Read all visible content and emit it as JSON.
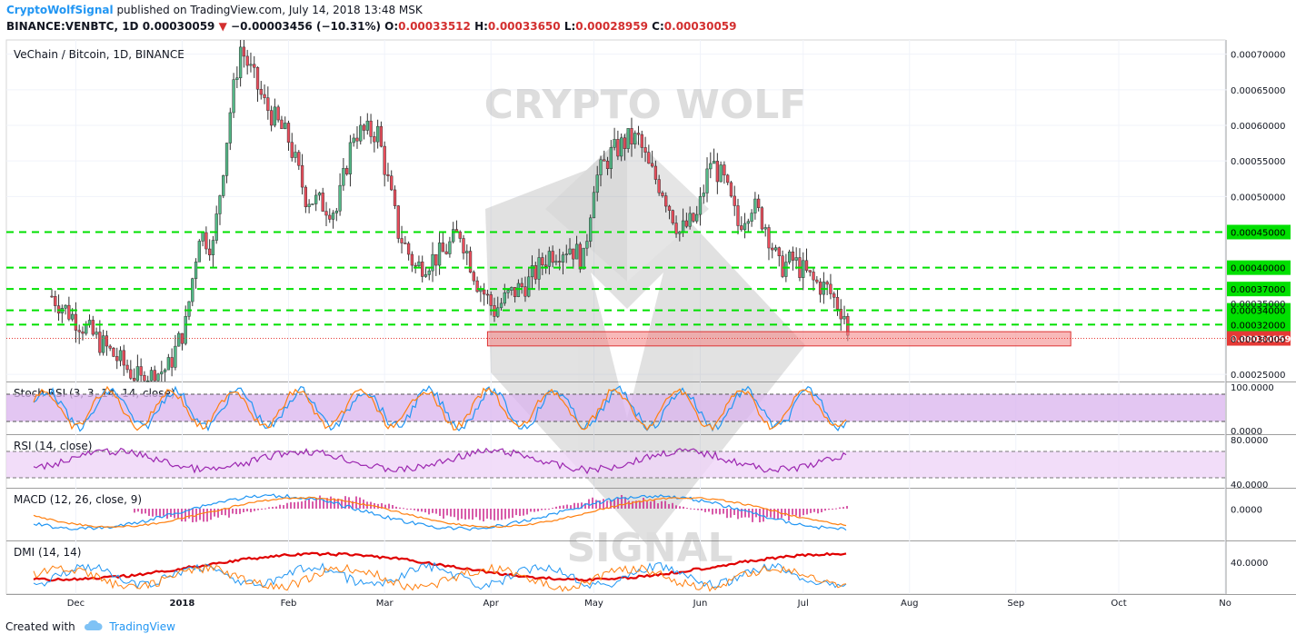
{
  "header": {
    "author": "CryptoWolfSignal",
    "published": "published on TradingView.com, July 14, 2018 13:48 MSK",
    "symbol": "BINANCE:VENBTC, 1D",
    "last": "0.00030059",
    "change": "−0.00003456 (−10.31%)",
    "open_label": "O:",
    "open": "0.00033512",
    "high_label": "H:",
    "high": "0.00033650",
    "low_label": "L:",
    "low": "0.00028959",
    "close_label": "C:",
    "close": "0.00030059"
  },
  "pane_title": "VeChain / Bitcoin, 1D, BINANCE",
  "watermark": {
    "top": "CRYPTO WOLF",
    "bottom": "SIGNAL"
  },
  "footer": {
    "created": "Created with",
    "brand": "TradingView"
  },
  "colors": {
    "up": "#53b987",
    "down": "#eb4d5c",
    "support": "#00e000",
    "zone": "#f48b8b",
    "stoch_band": "#d9b3ee",
    "rsi_band": "#efd5f8",
    "macd_line": "#2196f3",
    "macd_signal": "#ff7f0e",
    "macd_hist": "#c71585",
    "dmi_adx": "#e00000",
    "dmi_plus": "#2196f3",
    "dmi_minus": "#ff7f0e"
  },
  "chart_data": [
    {
      "type": "candlestick",
      "title": "VeChain / Bitcoin, 1D, BINANCE",
      "y_ticks": [
        "0.00070000",
        "0.00065000",
        "0.00060000",
        "0.00055000",
        "0.00050000",
        "0.00025000"
      ],
      "ylim": [
        0.00024,
        0.00072
      ],
      "x_ticks": [
        "Dec",
        "2018",
        "Feb",
        "Mar",
        "Apr",
        "May",
        "Jun",
        "Jul",
        "Aug",
        "Sep",
        "Oct",
        "No"
      ],
      "series_ohlc_approx": {
        "start": "2017-11-24",
        "close_path": [
          [
            "2017-11-24",
            0.00036
          ],
          [
            "2017-12-20",
            0.00024
          ],
          [
            "2017-12-28",
            0.00026
          ],
          [
            "2018-01-02",
            0.00032
          ],
          [
            "2018-01-06",
            0.00045
          ],
          [
            "2018-01-10",
            0.00043
          ],
          [
            "2018-01-15",
            0.00062
          ],
          [
            "2018-01-18",
            0.00071
          ],
          [
            "2018-01-25",
            0.00063
          ],
          [
            "2018-02-01",
            0.00058
          ],
          [
            "2018-02-06",
            0.0005
          ],
          [
            "2018-02-15",
            0.00048
          ],
          [
            "2018-02-20",
            0.00059
          ],
          [
            "2018-02-27",
            0.00059
          ],
          [
            "2018-03-05",
            0.00045
          ],
          [
            "2018-03-10",
            0.0004
          ],
          [
            "2018-03-18",
            0.00042
          ],
          [
            "2018-03-23",
            0.00045
          ],
          [
            "2018-03-28",
            0.00038
          ],
          [
            "2018-04-02",
            0.00034
          ],
          [
            "2018-04-06",
            0.00036
          ],
          [
            "2018-04-12",
            0.00038
          ],
          [
            "2018-04-18",
            0.00042
          ],
          [
            "2018-04-24",
            0.00043
          ],
          [
            "2018-04-28",
            0.00041
          ],
          [
            "2018-05-01",
            0.00052
          ],
          [
            "2018-05-06",
            0.00056
          ],
          [
            "2018-05-11",
            0.00058
          ],
          [
            "2018-05-14",
            0.00058
          ],
          [
            "2018-05-17",
            0.00054
          ],
          [
            "2018-05-21",
            0.00051
          ],
          [
            "2018-05-26",
            0.00045
          ],
          [
            "2018-05-31",
            0.00047
          ],
          [
            "2018-06-04",
            0.00055
          ],
          [
            "2018-06-08",
            0.00052
          ],
          [
            "2018-06-12",
            0.00046
          ],
          [
            "2018-06-16",
            0.00049
          ],
          [
            "2018-06-20",
            0.00046
          ],
          [
            "2018-06-24",
            0.0004
          ],
          [
            "2018-06-28",
            0.00041
          ],
          [
            "2018-07-04",
            0.00038
          ],
          [
            "2018-07-08",
            0.00037
          ],
          [
            "2018-07-13",
            0.000335
          ],
          [
            "2018-07-14",
            0.00030059
          ]
        ]
      },
      "horizontal_levels": [
        {
          "value": 0.00045,
          "label": "0.00045000"
        },
        {
          "value": 0.0004,
          "label": "0.00040000"
        },
        {
          "value": 0.00037,
          "label": "0.00037000"
        },
        {
          "value": 0.00034,
          "label": "0.00034000"
        },
        {
          "value": 0.00032,
          "label": "0.00032000"
        }
      ],
      "hidden_tick_labels": [
        "0.00035000",
        "0.00030000"
      ],
      "current_price": {
        "value": 0.00030059,
        "label": "0.00030059"
      },
      "zone": {
        "from": "2018-03-31",
        "to": "2018-09-17",
        "low": 0.00029,
        "high": 0.00031
      }
    },
    {
      "type": "line",
      "title": "Stoch RSI (3, 3, 14, 14, close)",
      "y_ticks": [
        "100.0000",
        "0.0000"
      ],
      "ylim": [
        0,
        100
      ],
      "band": [
        20,
        80
      ],
      "series": [
        {
          "color": "#2196f3"
        },
        {
          "color": "#ff7f0e"
        }
      ]
    },
    {
      "type": "line",
      "title": "RSI (14, close)",
      "y_ticks": [
        "80.0000",
        "40.0000"
      ],
      "ylim": [
        25,
        95
      ],
      "band": [
        30,
        70
      ],
      "series": [
        {
          "color": "#9c27b0"
        }
      ]
    },
    {
      "type": "line",
      "title": "MACD (12, 26, close, 9)",
      "y_ticks": [
        "0.0000"
      ],
      "series": [
        {
          "color": "#2196f3"
        },
        {
          "color": "#ff7f0e"
        },
        {
          "color": "#c71585"
        }
      ]
    },
    {
      "type": "line",
      "title": "DMI (14, 14)",
      "y_ticks": [
        "40.0000"
      ],
      "series": [
        {
          "color": "#e00000"
        },
        {
          "color": "#2196f3"
        },
        {
          "color": "#ff7f0e"
        }
      ]
    }
  ]
}
